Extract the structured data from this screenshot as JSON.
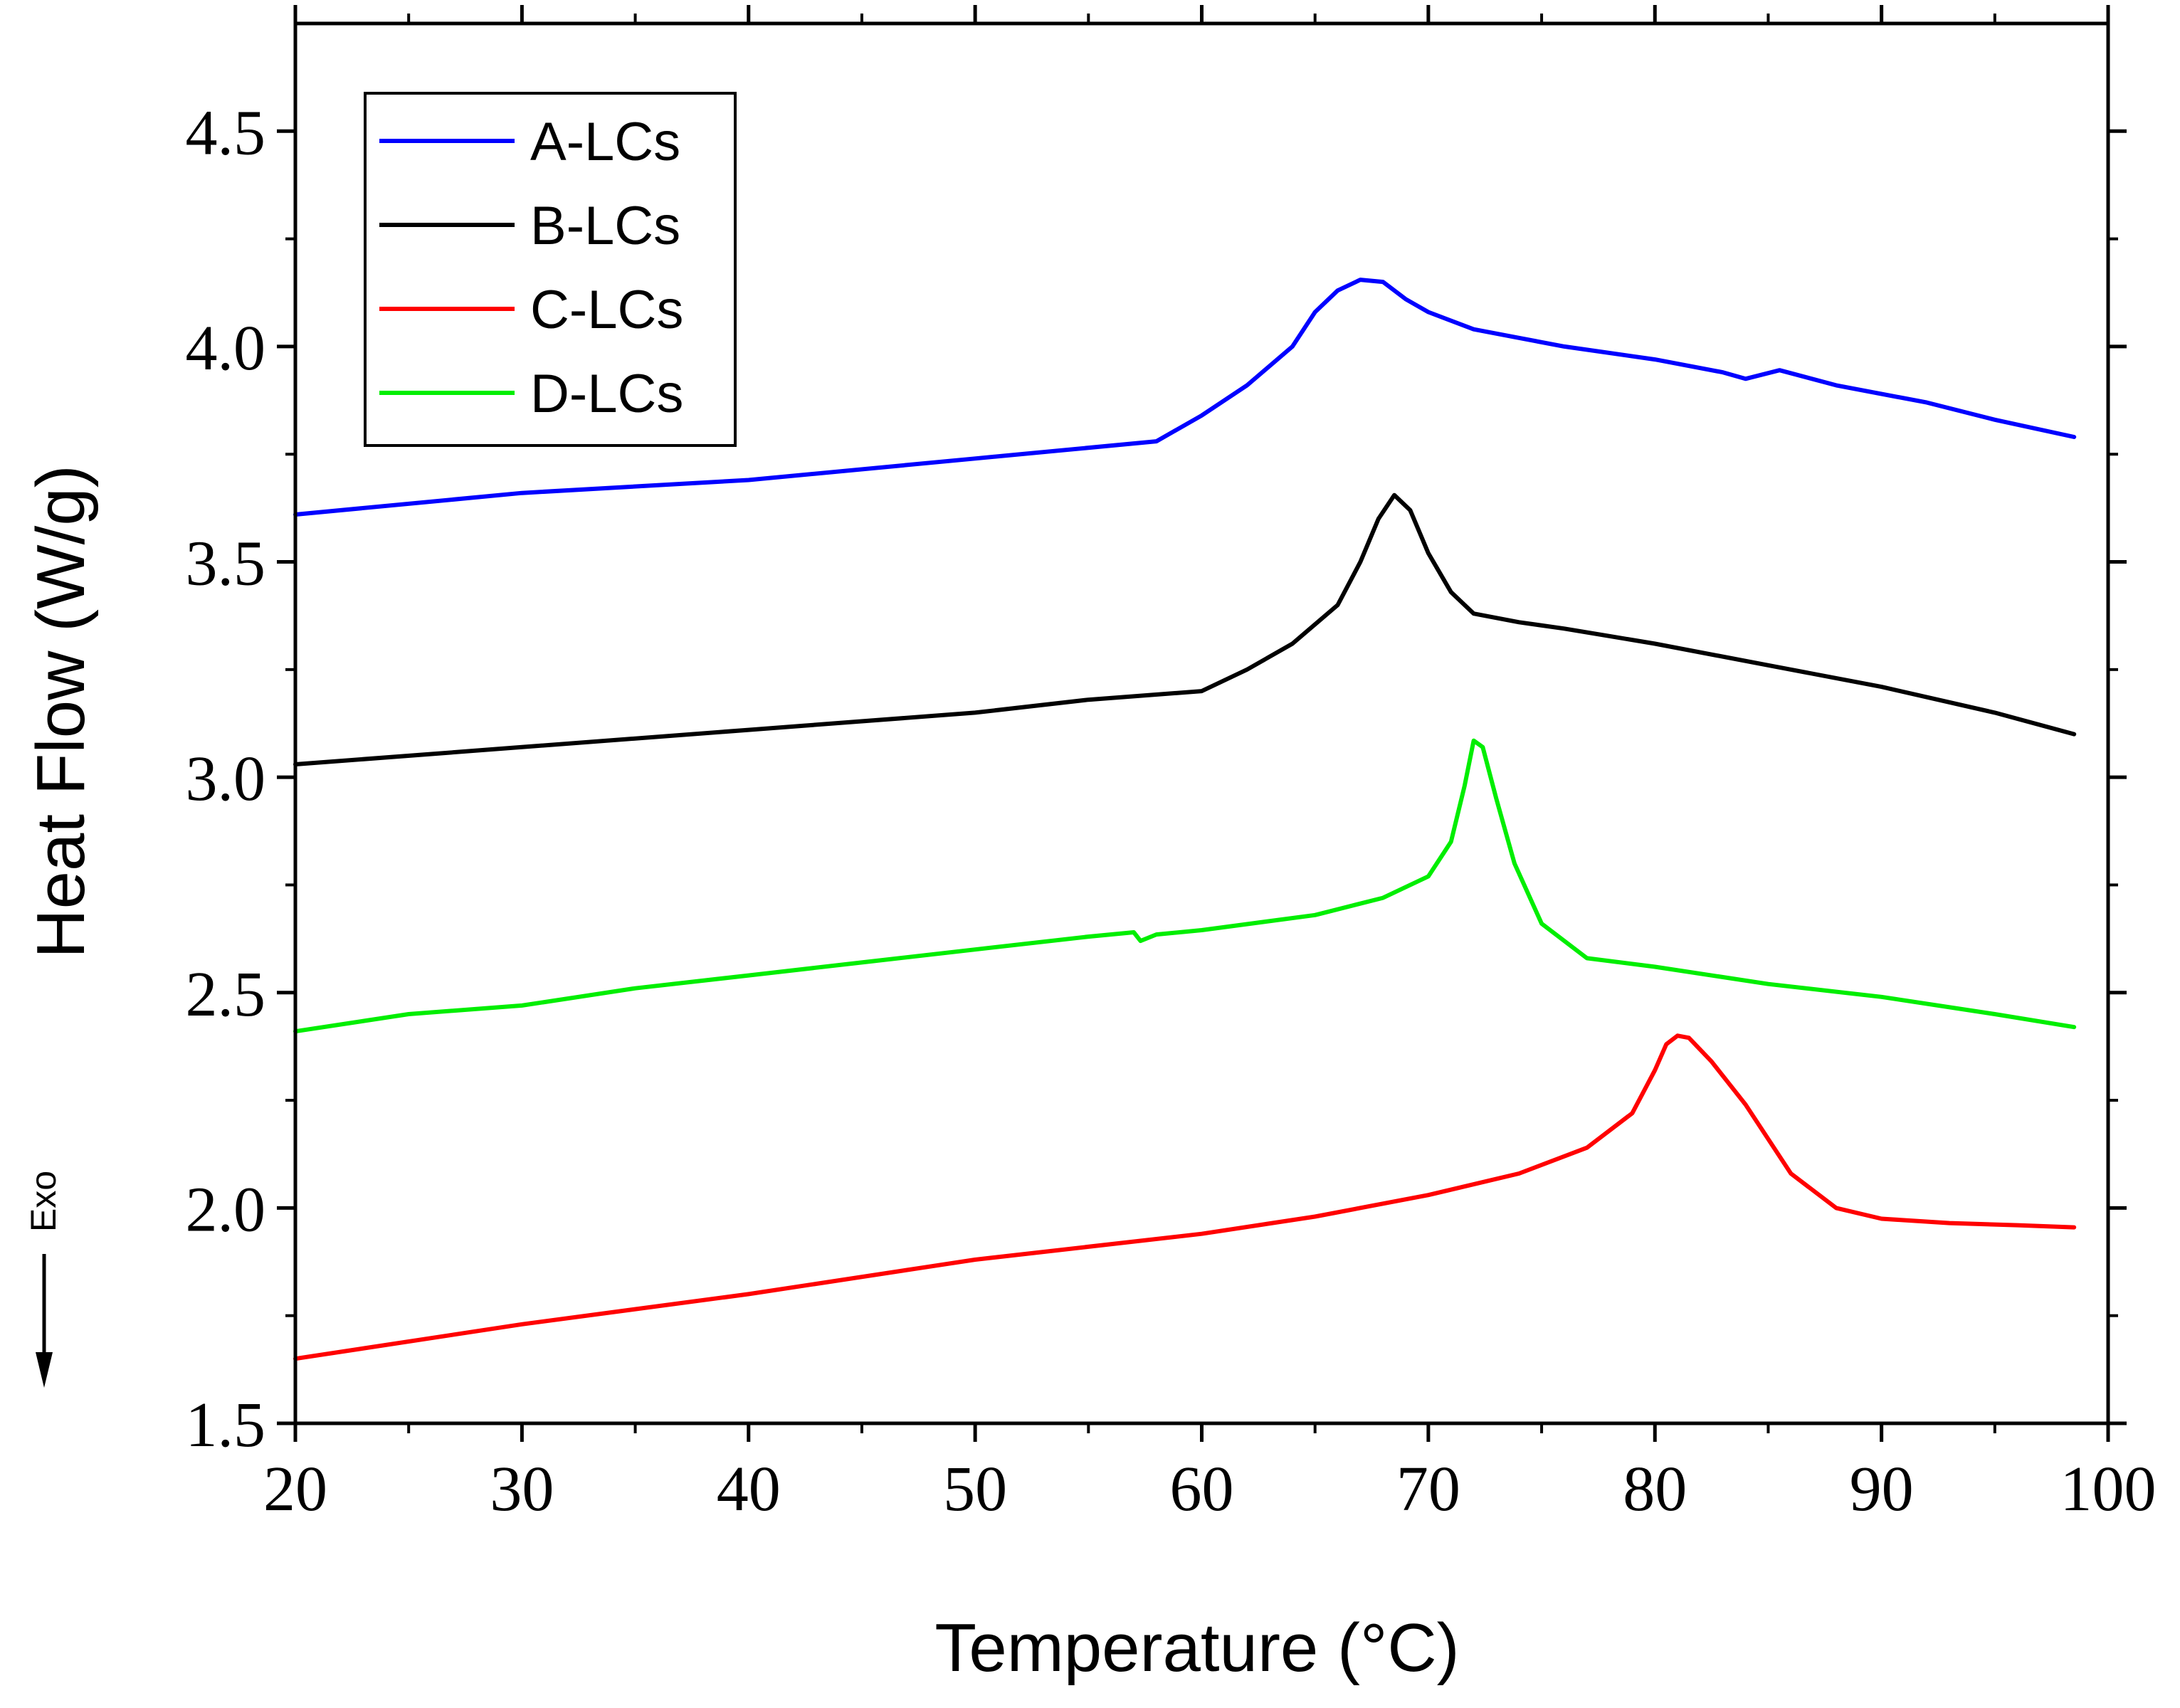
{
  "chart_data": {
    "type": "line",
    "title": "",
    "xlabel": "Temperature (°C)",
    "ylabel": "Heat Flow (W/g)",
    "xlim": [
      20,
      100
    ],
    "ylim": [
      1.5,
      4.75
    ],
    "x_ticks": [
      20,
      30,
      40,
      50,
      60,
      70,
      80,
      90,
      100
    ],
    "x_tick_labels": [
      "20",
      "30",
      "40",
      "50",
      "60",
      "70",
      "80",
      "90",
      "100"
    ],
    "y_ticks": [
      1.5,
      2.0,
      2.5,
      3.0,
      3.5,
      4.0,
      4.5
    ],
    "y_tick_labels": [
      "1.5",
      "2.0",
      "2.5",
      "3.0",
      "3.5",
      "4.0",
      "4.5"
    ],
    "legend_position": "top-left",
    "annotation": {
      "text": "Exo",
      "direction": "down"
    },
    "series": [
      {
        "name": "A-LCs",
        "color": "#0000ff",
        "points": [
          [
            20,
            3.61
          ],
          [
            30,
            3.66
          ],
          [
            40,
            3.69
          ],
          [
            50,
            3.74
          ],
          [
            58,
            3.78
          ],
          [
            60,
            3.84
          ],
          [
            62,
            3.91
          ],
          [
            64,
            4.0
          ],
          [
            65,
            4.08
          ],
          [
            66,
            4.13
          ],
          [
            67,
            4.155
          ],
          [
            68,
            4.15
          ],
          [
            69,
            4.11
          ],
          [
            70,
            4.08
          ],
          [
            72,
            4.04
          ],
          [
            74,
            4.02
          ],
          [
            76,
            4.0
          ],
          [
            80,
            3.97
          ],
          [
            83,
            3.94
          ],
          [
            84,
            3.925
          ],
          [
            85.5,
            3.945
          ],
          [
            88,
            3.91
          ],
          [
            92,
            3.87
          ],
          [
            95,
            3.83
          ],
          [
            98.5,
            3.79
          ]
        ]
      },
      {
        "name": "B-LCs",
        "color": "#000000",
        "points": [
          [
            20,
            3.03
          ],
          [
            30,
            3.07
          ],
          [
            40,
            3.11
          ],
          [
            50,
            3.15
          ],
          [
            55,
            3.18
          ],
          [
            60,
            3.2
          ],
          [
            62,
            3.25
          ],
          [
            64,
            3.31
          ],
          [
            66,
            3.4
          ],
          [
            67,
            3.5
          ],
          [
            67.8,
            3.6
          ],
          [
            68.5,
            3.655
          ],
          [
            69.2,
            3.62
          ],
          [
            70,
            3.52
          ],
          [
            71,
            3.43
          ],
          [
            72,
            3.38
          ],
          [
            74,
            3.36
          ],
          [
            76,
            3.345
          ],
          [
            80,
            3.31
          ],
          [
            85,
            3.26
          ],
          [
            90,
            3.21
          ],
          [
            95,
            3.15
          ],
          [
            98.5,
            3.1
          ]
        ]
      },
      {
        "name": "C-LCs",
        "color": "#ff0000",
        "points": [
          [
            20,
            1.65
          ],
          [
            30,
            1.73
          ],
          [
            40,
            1.8
          ],
          [
            50,
            1.88
          ],
          [
            60,
            1.94
          ],
          [
            65,
            1.98
          ],
          [
            70,
            2.03
          ],
          [
            74,
            2.08
          ],
          [
            77,
            2.14
          ],
          [
            79,
            2.22
          ],
          [
            80,
            2.32
          ],
          [
            80.5,
            2.38
          ],
          [
            81,
            2.4
          ],
          [
            81.5,
            2.395
          ],
          [
            82.5,
            2.34
          ],
          [
            84,
            2.24
          ],
          [
            86,
            2.08
          ],
          [
            88,
            2.0
          ],
          [
            90,
            1.975
          ],
          [
            93,
            1.965
          ],
          [
            96,
            1.96
          ],
          [
            98.5,
            1.955
          ]
        ]
      },
      {
        "name": "D-LCs",
        "color": "#00ee00",
        "points": [
          [
            20,
            2.41
          ],
          [
            25,
            2.45
          ],
          [
            30,
            2.47
          ],
          [
            35,
            2.51
          ],
          [
            40,
            2.54
          ],
          [
            45,
            2.57
          ],
          [
            50,
            2.6
          ],
          [
            55,
            2.63
          ],
          [
            57,
            2.64
          ],
          [
            57.3,
            2.62
          ],
          [
            58,
            2.635
          ],
          [
            60,
            2.645
          ],
          [
            65,
            2.68
          ],
          [
            68,
            2.72
          ],
          [
            70,
            2.77
          ],
          [
            71,
            2.85
          ],
          [
            71.6,
            2.98
          ],
          [
            72,
            3.085
          ],
          [
            72.4,
            3.07
          ],
          [
            73,
            2.95
          ],
          [
            73.8,
            2.8
          ],
          [
            75,
            2.66
          ],
          [
            77,
            2.58
          ],
          [
            80,
            2.56
          ],
          [
            85,
            2.52
          ],
          [
            90,
            2.49
          ],
          [
            95,
            2.45
          ],
          [
            98.5,
            2.42
          ]
        ]
      }
    ]
  }
}
